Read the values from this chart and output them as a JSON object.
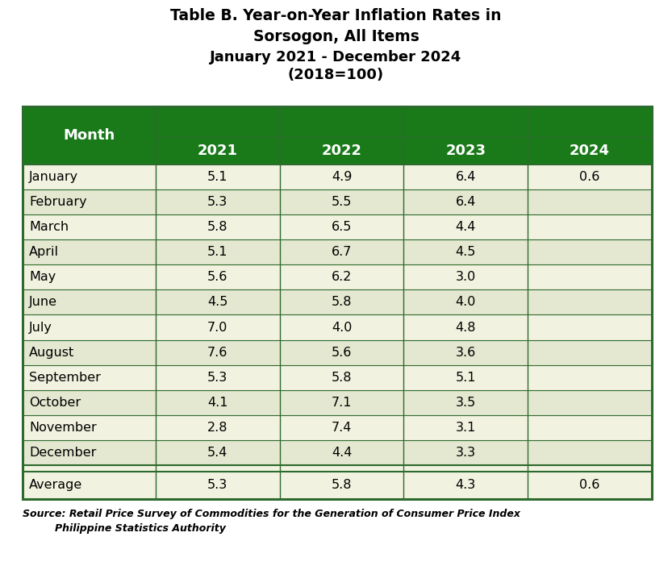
{
  "title_line1": "Table B. Year-on-Year Inflation Rates in",
  "title_line2": "Sorsogon, All Items",
  "title_line3": "January 2021 - December 2024",
  "title_line4": "(2018=100)",
  "source_line1": "Source: Retail Price Survey of Commodities for the Generation of Consumer Price Index",
  "source_line2": "Philippine Statistics Authority",
  "months": [
    "January",
    "February",
    "March",
    "April",
    "May",
    "June",
    "July",
    "August",
    "September",
    "October",
    "November",
    "December",
    "Average"
  ],
  "years": [
    "2021",
    "2022",
    "2023",
    "2024"
  ],
  "data": {
    "January": [
      "5.1",
      "4.9",
      "6.4",
      "0.6"
    ],
    "February": [
      "5.3",
      "5.5",
      "6.4",
      ""
    ],
    "March": [
      "5.8",
      "6.5",
      "4.4",
      ""
    ],
    "April": [
      "5.1",
      "6.7",
      "4.5",
      ""
    ],
    "May": [
      "5.6",
      "6.2",
      "3.0",
      ""
    ],
    "June": [
      "4.5",
      "5.8",
      "4.0",
      ""
    ],
    "July": [
      "7.0",
      "4.0",
      "4.8",
      ""
    ],
    "August": [
      "7.6",
      "5.6",
      "3.6",
      ""
    ],
    "September": [
      "5.3",
      "5.8",
      "5.1",
      ""
    ],
    "October": [
      "4.1",
      "7.1",
      "3.5",
      ""
    ],
    "November": [
      "2.8",
      "7.4",
      "3.1",
      ""
    ],
    "December": [
      "5.4",
      "4.4",
      "3.3",
      ""
    ],
    "Average": [
      "5.3",
      "5.8",
      "4.3",
      "0.6"
    ]
  },
  "header_bg_color": "#1a7a1a",
  "header_text_color": "#ffffff",
  "row_color_light": "#f2f2e0",
  "row_color_dark": "#e4e8d0",
  "border_color": "#2d6a2d",
  "separator_row_color": "#e8e8d8",
  "fig_width": 8.33,
  "fig_height": 7.07,
  "dpi": 100
}
